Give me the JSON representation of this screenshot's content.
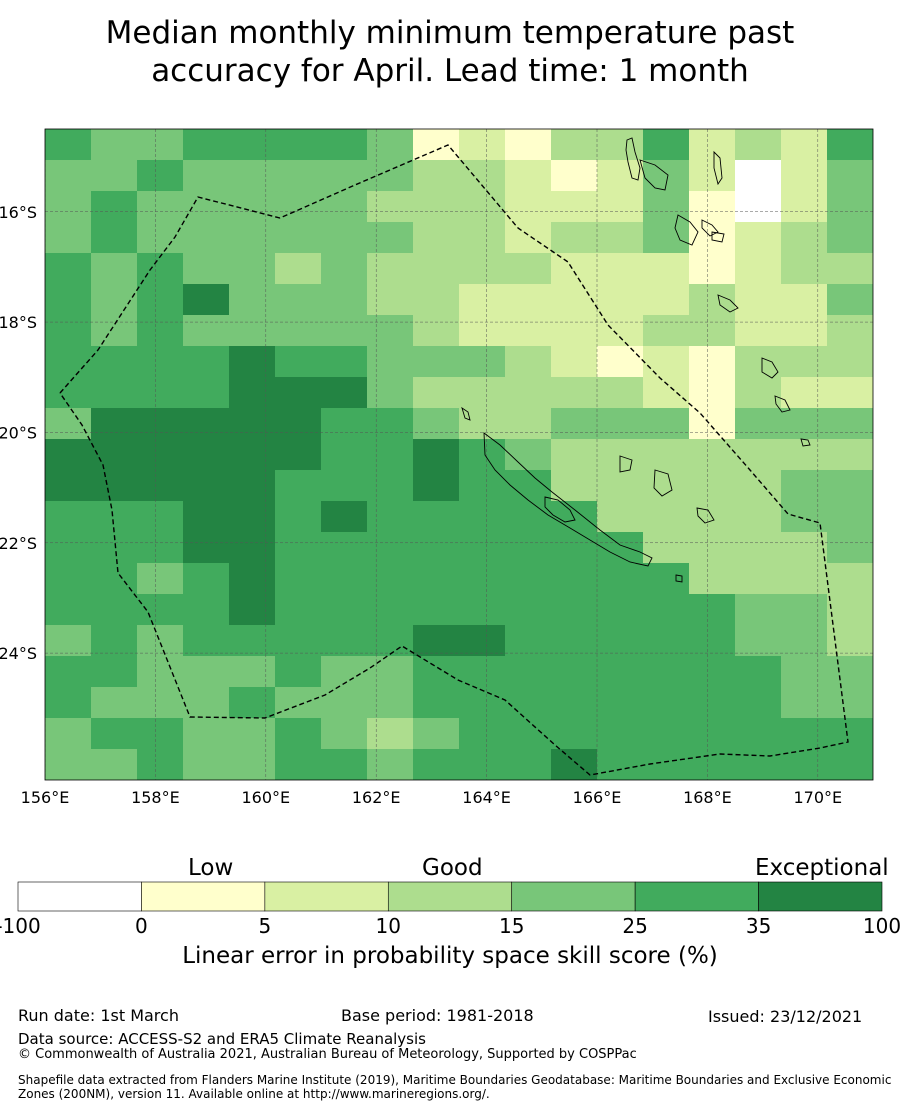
{
  "title_line1": "Median monthly minimum temperature past",
  "title_line2": "accuracy for April. Lead time: 1 month",
  "map": {
    "lon_range": [
      156,
      171
    ],
    "lat_range": [
      -26.3,
      -14.5
    ],
    "lon_ticks": [
      "156°E",
      "158°E",
      "160°E",
      "162°E",
      "164°E",
      "166°E",
      "168°E",
      "170°E"
    ],
    "lat_ticks": [
      "16°S",
      "18°S",
      "20°S",
      "22°S",
      "24°S"
    ],
    "grid": "dashed",
    "boundary": "dashed EEZ outline"
  },
  "colorbar": {
    "categories": [
      "Low",
      "Good",
      "Exceptional"
    ],
    "tick_labels": [
      "-100",
      "0",
      "5",
      "10",
      "15",
      "25",
      "35",
      "100"
    ],
    "colors": [
      "#ffffff",
      "#ffffcc",
      "#d9f0a3",
      "#addd8e",
      "#78c679",
      "#41ab5d",
      "#238443"
    ],
    "title": "Linear error in probability space skill score (%)"
  },
  "footer": {
    "run_date": "Run date: 1st March",
    "base_period": "Base period: 1981-2018",
    "issued": "Issued: 23/12/2021",
    "data_source": "Data source: ACCESS-S2 and ERA5 Climate Reanalysis",
    "copyright": "© Commonwealth of Australia 2021, Australian Bureau of Meteorology, Supported by COSPPac",
    "shapefile_line1": "Shapefile data extracted from Flanders Marine Institute (2019), Maritime Boundaries Geodatabase: Maritime Boundaries and Exclusive Economic",
    "shapefile_line2": "Zones (200NM), version 11. Available online at http://www.marineregions.org/."
  }
}
